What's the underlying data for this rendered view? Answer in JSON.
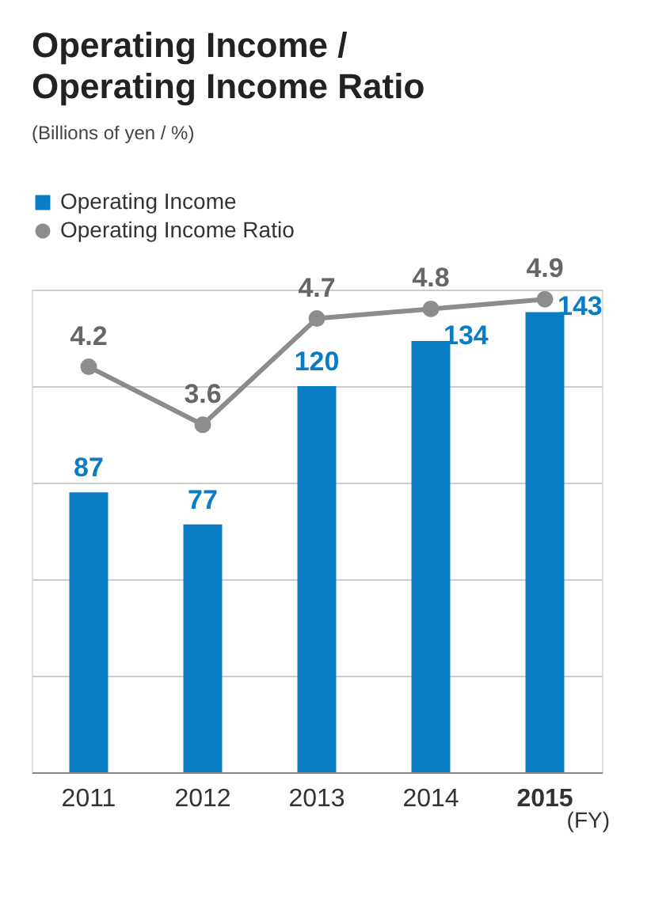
{
  "chart_data": {
    "type": "bar",
    "title": "Operating Income / Operating Income Ratio",
    "subtitle": "(Billions of yen / %)",
    "categories": [
      "2011",
      "2012",
      "2013",
      "2014",
      "2015"
    ],
    "series": [
      {
        "name": "Operating Income",
        "color": "#0a7cc4",
        "values": [
          87,
          77,
          120,
          134,
          143
        ]
      },
      {
        "name": "Operating Income Ratio",
        "type": "line",
        "axis": "y2",
        "color": "#8c8c8c",
        "values": [
          4.2,
          3.6,
          4.7,
          4.8,
          4.9
        ]
      }
    ],
    "ylim": [
      0,
      150
    ],
    "yticks": [
      {
        "value": 0,
        "label": null
      },
      {
        "value": 30,
        "label": null
      },
      {
        "value": 60,
        "label": null
      },
      {
        "value": 90,
        "label": null
      },
      {
        "value": 120,
        "label": null
      },
      {
        "value": 150,
        "label": null
      }
    ],
    "y2lim": [
      0,
      5
    ],
    "tick_labels": "x",
    "grid": "y",
    "legend": "top left",
    "marker": "circle",
    "line_style": "solid",
    "data_labels": true,
    "annotations": [
      "(FY)"
    ]
  }
}
